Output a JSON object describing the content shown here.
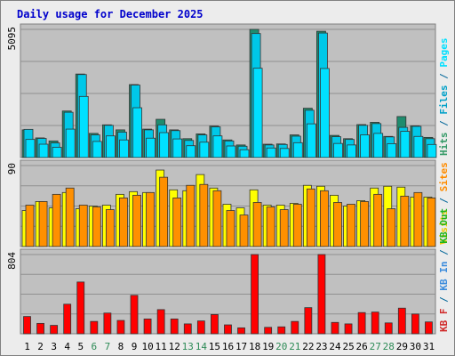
{
  "chart_data": [
    {
      "type": "bar",
      "title": "Daily usage for December 2025",
      "ymax_label": "5095",
      "ylim": [
        0,
        5095
      ],
      "grid": true,
      "categories": [
        "1",
        "2",
        "3",
        "4",
        "5",
        "6",
        "7",
        "8",
        "9",
        "10",
        "11",
        "12",
        "13",
        "14",
        "15",
        "16",
        "17",
        "18",
        "19",
        "20",
        "21",
        "22",
        "23",
        "24",
        "25",
        "26",
        "27",
        "28",
        "29",
        "30",
        "31"
      ],
      "weekend_days": [
        "6",
        "7",
        "13",
        "14",
        "20",
        "21",
        "27",
        "28"
      ],
      "legend": [
        {
          "text": "Hits",
          "color": "#339966"
        },
        {
          "text": " / ",
          "color": "#006699"
        },
        {
          "text": "Files",
          "color": "#00a0c8"
        },
        {
          "text": " / ",
          "color": "#006699"
        },
        {
          "text": "Pages",
          "color": "#00e0ff"
        }
      ],
      "series": [
        {
          "name": "Hits",
          "color": "#1e8c6e",
          "values": [
            1100,
            780,
            660,
            1850,
            3320,
            960,
            1300,
            1100,
            2900,
            1130,
            1520,
            1100,
            750,
            940,
            1250,
            700,
            500,
            5095,
            530,
            540,
            900,
            1960,
            5020,
            880,
            750,
            1310,
            1400,
            840,
            1630,
            1260,
            800
          ]
        },
        {
          "name": "Files",
          "color": "#00c8e8",
          "values": [
            1120,
            760,
            580,
            1800,
            3300,
            900,
            1280,
            1010,
            2880,
            1100,
            1300,
            1070,
            680,
            900,
            1220,
            660,
            450,
            4930,
            500,
            520,
            850,
            1880,
            4950,
            830,
            720,
            1280,
            1350,
            820,
            1200,
            1240,
            750
          ]
        },
        {
          "name": "Pages",
          "color": "#00e0ff",
          "values": [
            720,
            530,
            410,
            1130,
            2430,
            640,
            860,
            700,
            1980,
            770,
            990,
            740,
            470,
            610,
            860,
            460,
            310,
            3550,
            380,
            360,
            590,
            1340,
            3540,
            560,
            500,
            900,
            960,
            550,
            1040,
            840,
            520
          ]
        }
      ]
    },
    {
      "type": "bar",
      "ymax_label": "90",
      "ylim": [
        0,
        90
      ],
      "grid": true,
      "categories": [
        "1",
        "2",
        "3",
        "4",
        "5",
        "6",
        "7",
        "8",
        "9",
        "10",
        "11",
        "12",
        "13",
        "14",
        "15",
        "16",
        "17",
        "18",
        "19",
        "20",
        "21",
        "22",
        "23",
        "24",
        "25",
        "26",
        "27",
        "28",
        "29",
        "30",
        "31"
      ],
      "legend": [
        {
          "text": "Visits",
          "color": "#e8c800"
        },
        {
          "text": " / ",
          "color": "#006699"
        },
        {
          "text": "Sites",
          "color": "#ff8c00"
        }
      ],
      "series": [
        {
          "name": "Visits",
          "color": "#ffff00",
          "values": [
            40,
            50,
            43,
            60,
            42,
            45,
            46,
            58,
            61,
            60,
            85,
            63,
            62,
            80,
            65,
            47,
            43,
            63,
            46,
            46,
            48,
            68,
            67,
            57,
            45,
            51,
            65,
            67,
            66,
            55,
            55
          ]
        },
        {
          "name": "Sites",
          "color": "#ff9000",
          "values": [
            46,
            50,
            58,
            65,
            46,
            44,
            41,
            54,
            57,
            60,
            77,
            54,
            68,
            69,
            62,
            40,
            35,
            49,
            44,
            41,
            47,
            64,
            62,
            49,
            47,
            50,
            58,
            42,
            56,
            60,
            54
          ]
        }
      ]
    },
    {
      "type": "bar",
      "ymax_label": "804",
      "ylim": [
        0,
        804
      ],
      "grid": true,
      "categories": [
        "1",
        "2",
        "3",
        "4",
        "5",
        "6",
        "7",
        "8",
        "9",
        "10",
        "11",
        "12",
        "13",
        "14",
        "15",
        "16",
        "17",
        "18",
        "19",
        "20",
        "21",
        "22",
        "23",
        "24",
        "25",
        "26",
        "27",
        "28",
        "29",
        "30",
        "31"
      ],
      "legend": [
        {
          "text": "KB F",
          "color": "#d02828"
        },
        {
          "text": " / ",
          "color": "#006699"
        },
        {
          "text": "KB In",
          "color": "#3c8cdc"
        },
        {
          "text": " / ",
          "color": "#006699"
        },
        {
          "text": "KB Out",
          "color": "#1eb41e"
        }
      ],
      "series": [
        {
          "name": "KB F",
          "color": "#ff0000",
          "values": [
            175,
            105,
            85,
            300,
            525,
            125,
            210,
            135,
            390,
            150,
            245,
            150,
            100,
            130,
            195,
            90,
            60,
            804,
            65,
            70,
            125,
            265,
            804,
            115,
            100,
            215,
            220,
            110,
            260,
            200,
            120
          ]
        }
      ]
    }
  ]
}
